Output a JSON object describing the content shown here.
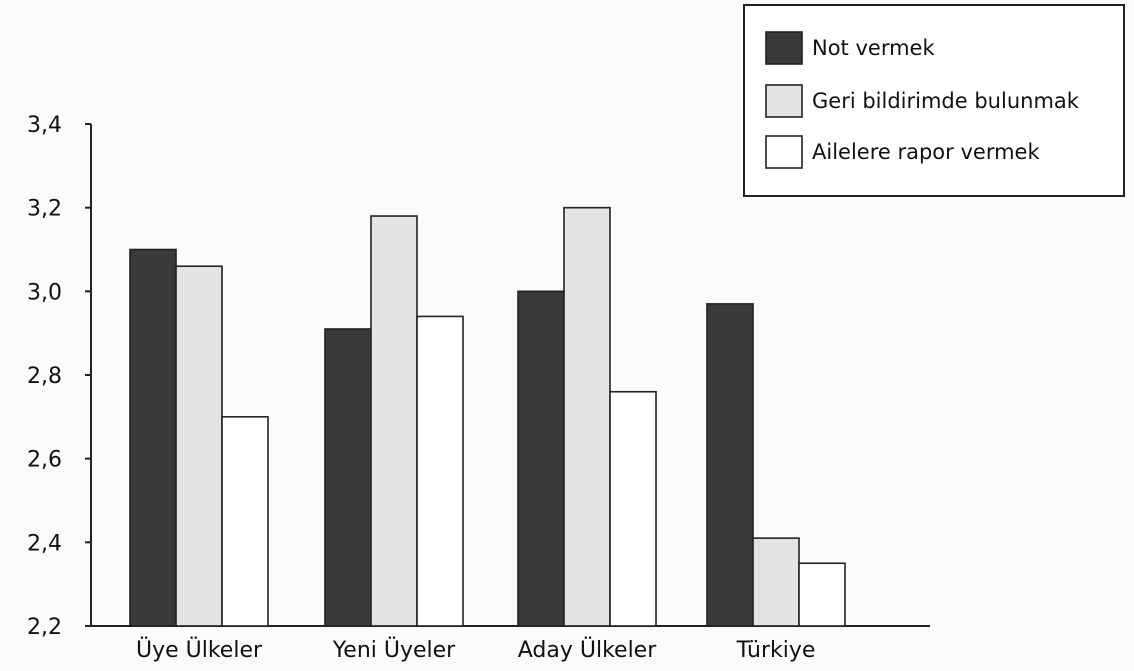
{
  "chart_data": {
    "type": "bar",
    "categories": [
      "Üye Ülkeler",
      "Yeni Üyeler",
      "Aday Ülkeler",
      "Türkiye"
    ],
    "series": [
      {
        "name": "Not vermek",
        "values": [
          3.1,
          2.91,
          3.0,
          2.97
        ],
        "color": "#3a3a3a"
      },
      {
        "name": "Geri bildirimde bulunmak",
        "values": [
          3.06,
          3.18,
          3.2,
          2.41
        ],
        "color": "#e6e3e3"
      },
      {
        "name": "Ailelere rapor vermek",
        "values": [
          2.7,
          2.94,
          2.76,
          2.35
        ],
        "color": "#ffffff"
      }
    ],
    "yticks": [
      "2,2",
      "2,4",
      "2,6",
      "2,8",
      "3,0",
      "3,2",
      "3,4"
    ],
    "ylim": [
      2.2,
      3.4
    ],
    "legend_position": "top-right",
    "grid": false,
    "title": "",
    "xlabel": "",
    "ylabel": ""
  }
}
